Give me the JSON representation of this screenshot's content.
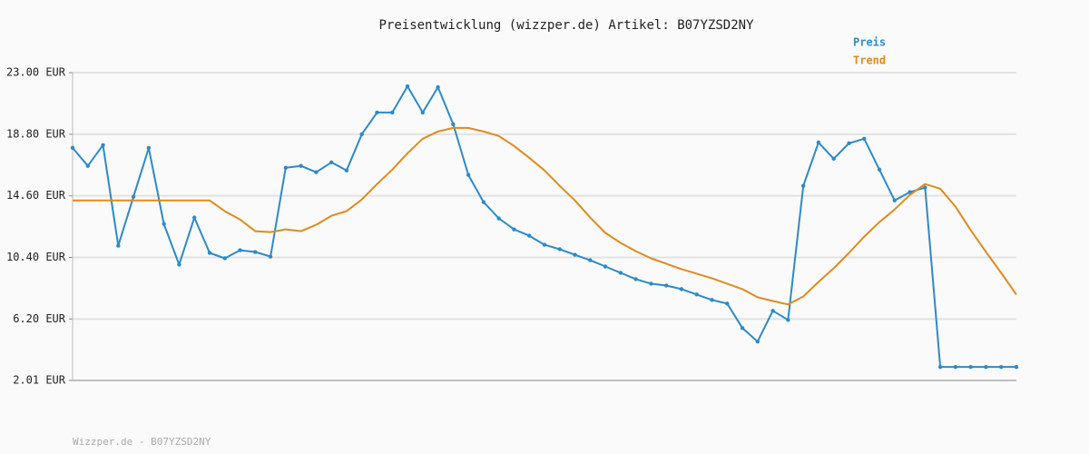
{
  "chart_data": {
    "type": "line",
    "title": "Preisentwicklung (wizzper.de) Artikel: B07YZSD2NY",
    "footer": "Wizzper.de - B07YZSD2NY",
    "categories": [
      null,
      null,
      null,
      null,
      null,
      null,
      null,
      null,
      null,
      null,
      null,
      null,
      null,
      null,
      null,
      null,
      null,
      null,
      null,
      null,
      null,
      null,
      null,
      null,
      null,
      null,
      null,
      null,
      null,
      null,
      null,
      null,
      null,
      null,
      null,
      null,
      null,
      null,
      null,
      null,
      null,
      null,
      null,
      null,
      null,
      null,
      null,
      null,
      null,
      null,
      null,
      null,
      null,
      null,
      null,
      null,
      null,
      null,
      null,
      null,
      null,
      null,
      null
    ],
    "series": [
      {
        "name": "Preis",
        "color": "#2d8ac7",
        "markers": true,
        "values": [
          17.87,
          16.64,
          18.06,
          11.2,
          14.54,
          17.87,
          12.68,
          9.91,
          13.12,
          10.71,
          10.34,
          10.89,
          10.77,
          10.46,
          16.51,
          16.64,
          16.21,
          16.88,
          16.33,
          18.8,
          20.28,
          20.28,
          22.07,
          20.28,
          22.01,
          19.48,
          16.02,
          14.17,
          13.06,
          12.31,
          11.88,
          11.26,
          10.96,
          10.58,
          10.21,
          9.78,
          9.35,
          8.92,
          8.61,
          8.48,
          8.24,
          7.87,
          7.5,
          7.25,
          5.58,
          4.66,
          6.76,
          6.14,
          15.28,
          18.24,
          17.13,
          18.18,
          18.49,
          16.39,
          14.29,
          14.85,
          15.16,
          2.93,
          2.93,
          2.93,
          2.93,
          2.93,
          2.93
        ]
      },
      {
        "name": "Trend",
        "color": "#e08a1e",
        "markers": false,
        "values": [
          14.29,
          14.29,
          14.29,
          14.29,
          14.29,
          14.29,
          14.29,
          14.29,
          14.29,
          14.29,
          13.55,
          12.99,
          12.19,
          12.13,
          12.31,
          12.19,
          12.62,
          13.24,
          13.55,
          14.35,
          15.4,
          16.39,
          17.5,
          18.49,
          18.99,
          19.23,
          19.23,
          18.99,
          18.68,
          18.0,
          17.19,
          16.33,
          15.28,
          14.29,
          13.12,
          12.07,
          11.39,
          10.83,
          10.34,
          9.97,
          9.6,
          9.29,
          8.98,
          8.61,
          8.24,
          7.68,
          7.43,
          7.19,
          7.74,
          8.73,
          9.66,
          10.71,
          11.82,
          12.81,
          13.67,
          14.66,
          15.4,
          15.09,
          13.86,
          12.25,
          10.77,
          9.35,
          7.87
        ]
      }
    ],
    "ylim": [
      2.01,
      23
    ],
    "yticks": [
      {
        "value": 2.01,
        "label": "2.01 EUR"
      },
      {
        "value": 6.2,
        "label": "6.20 EUR"
      },
      {
        "value": 10.4,
        "label": "10.40 EUR"
      },
      {
        "value": 14.6,
        "label": "14.60 EUR"
      },
      {
        "value": 18.8,
        "label": "18.80 EUR"
      },
      {
        "value": 23,
        "label": "23.00 EUR"
      }
    ],
    "grid": true,
    "legend": "top-right"
  }
}
